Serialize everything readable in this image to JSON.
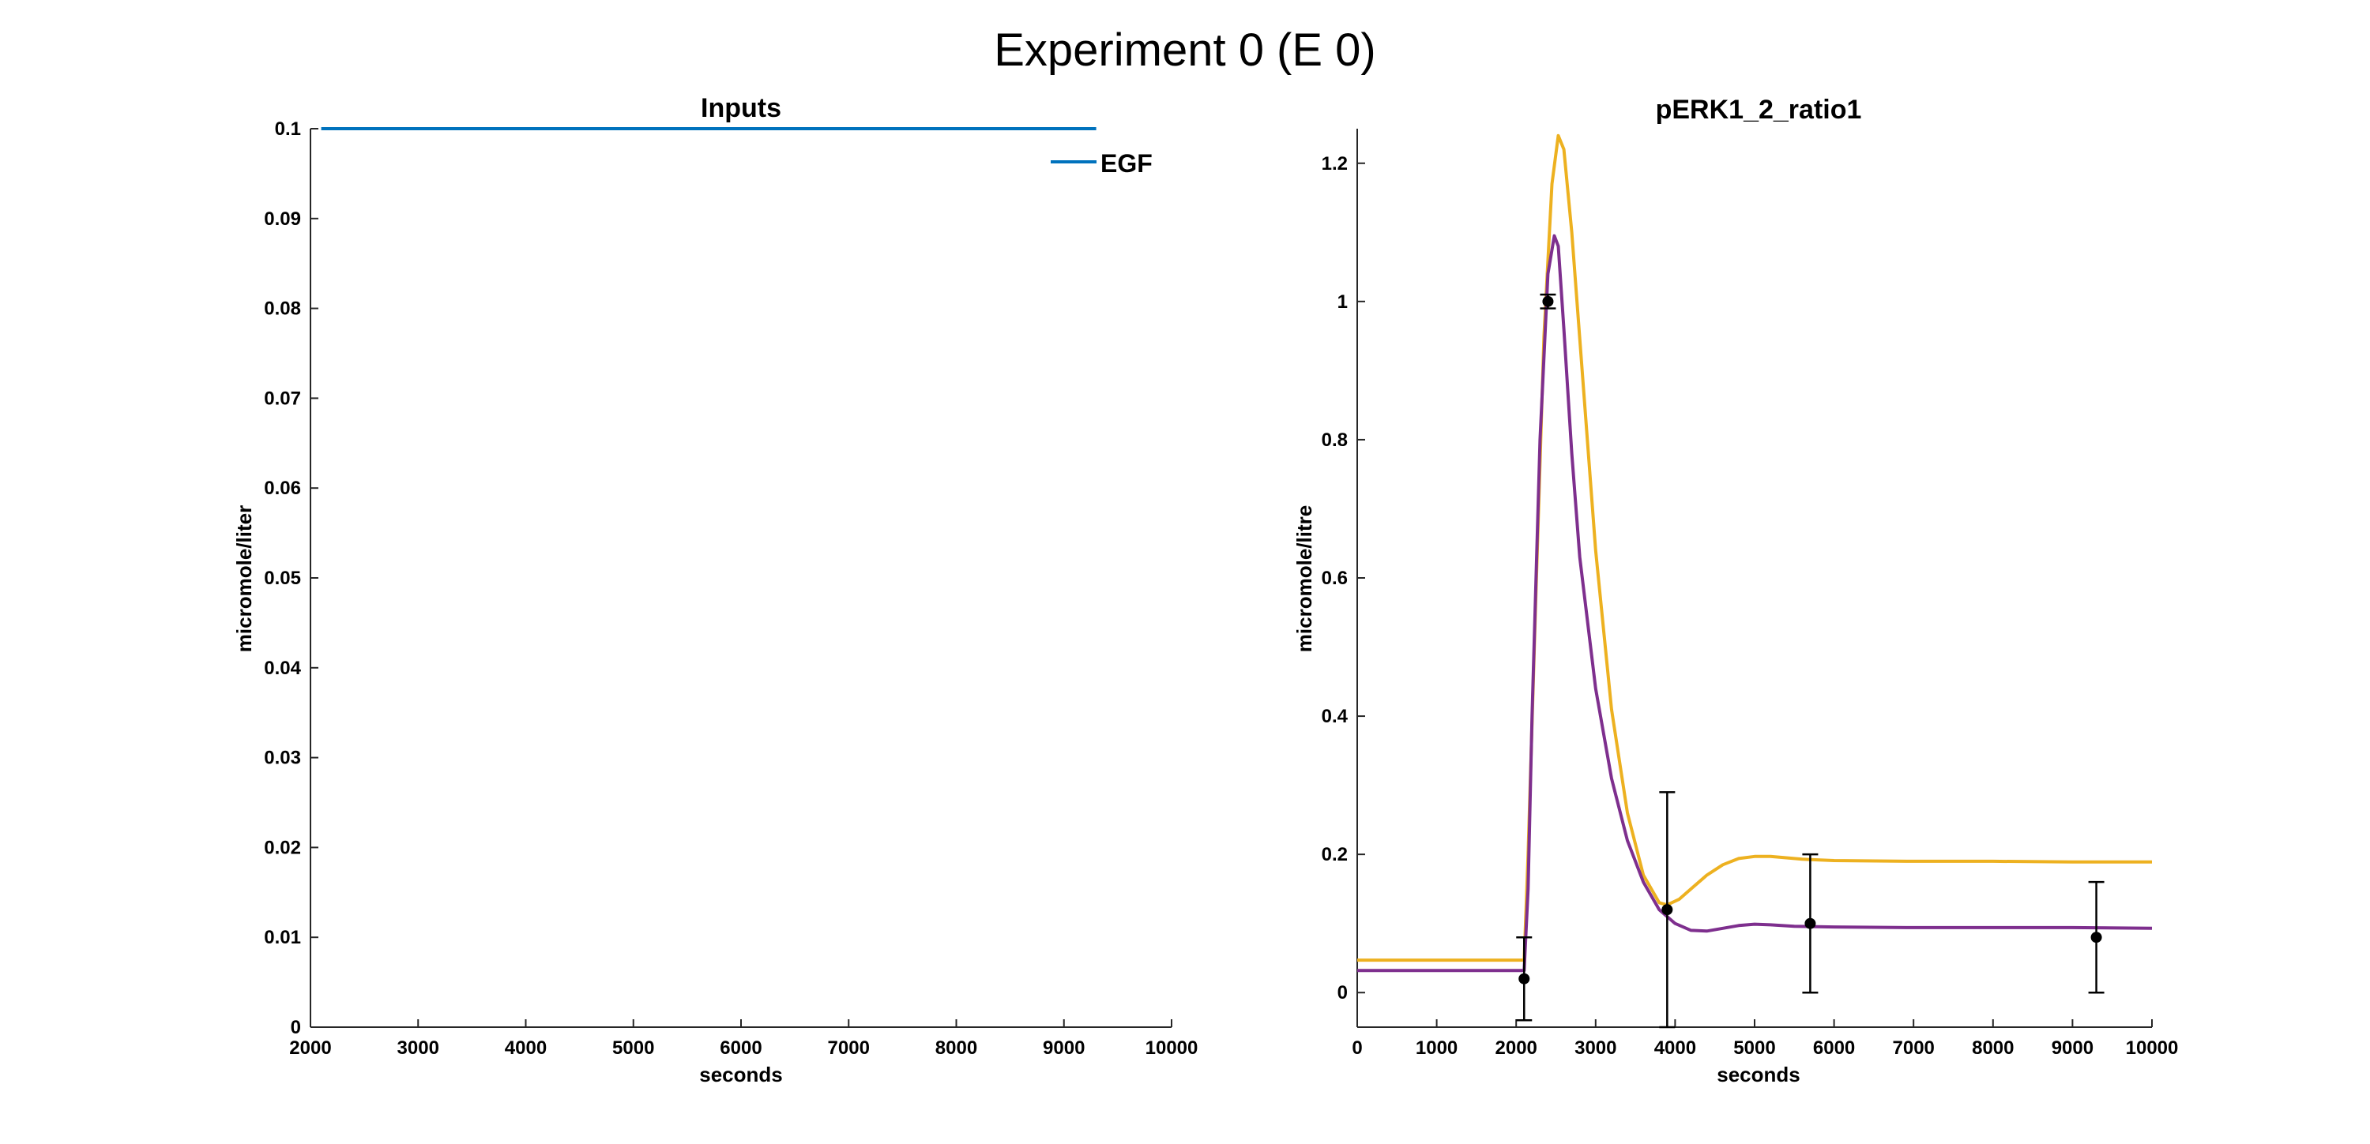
{
  "figure_title": "Experiment 0  (E 0)",
  "chart_data": [
    {
      "type": "line",
      "title": "Inputs",
      "xlabel": "seconds",
      "ylabel": "micromole/liter",
      "xlim": [
        2000,
        10000
      ],
      "ylim": [
        0,
        0.1
      ],
      "xticks": [
        "2000",
        "3000",
        "4000",
        "5000",
        "6000",
        "7000",
        "8000",
        "9000",
        "10000"
      ],
      "yticks": [
        "0",
        "0.01",
        "0.02",
        "0.03",
        "0.04",
        "0.05",
        "0.06",
        "0.07",
        "0.08",
        "0.09",
        "0.1"
      ],
      "series": [
        {
          "name": "EGF",
          "color": "#0072BD",
          "x": [
            2100,
            9300
          ],
          "y": [
            0.1,
            0.1
          ]
        }
      ],
      "legend": {
        "position": "top-right"
      },
      "grid": false
    },
    {
      "type": "line",
      "title": "pERK1_2_ratio1",
      "xlabel": "seconds",
      "ylabel": "micromole/litre",
      "xlim": [
        0,
        10000
      ],
      "ylim": [
        -0.05,
        1.25
      ],
      "xticks": [
        "0",
        "1000",
        "2000",
        "3000",
        "4000",
        "5000",
        "6000",
        "7000",
        "8000",
        "9000",
        "10000"
      ],
      "yticks": [
        "0",
        "0.2",
        "0.4",
        "0.6",
        "0.8",
        "1",
        "1.2"
      ],
      "series": [
        {
          "color": "#EDB120",
          "x": [
            0,
            2100,
            2150,
            2250,
            2350,
            2450,
            2530,
            2600,
            2700,
            2850,
            3000,
            3200,
            3400,
            3600,
            3800,
            3900,
            4050,
            4200,
            4400,
            4600,
            4800,
            5000,
            5200,
            5400,
            5600,
            6000,
            7000,
            8000,
            9000,
            10000
          ],
          "y": [
            0.047,
            0.047,
            0.2,
            0.58,
            0.95,
            1.17,
            1.24,
            1.22,
            1.1,
            0.87,
            0.64,
            0.41,
            0.26,
            0.17,
            0.13,
            0.127,
            0.135,
            0.15,
            0.17,
            0.185,
            0.194,
            0.197,
            0.197,
            0.195,
            0.193,
            0.191,
            0.19,
            0.19,
            0.189,
            0.189
          ]
        },
        {
          "color": "#7E2F8E",
          "x": [
            0,
            2100,
            2150,
            2200,
            2300,
            2400,
            2480,
            2530,
            2600,
            2700,
            2800,
            3000,
            3200,
            3400,
            3600,
            3800,
            4000,
            4200,
            4400,
            4600,
            4800,
            5000,
            5200,
            5500,
            6000,
            7000,
            8000,
            9000,
            10000
          ],
          "y": [
            0.032,
            0.032,
            0.15,
            0.4,
            0.8,
            1.04,
            1.095,
            1.08,
            0.96,
            0.78,
            0.63,
            0.44,
            0.31,
            0.22,
            0.16,
            0.12,
            0.1,
            0.09,
            0.089,
            0.093,
            0.097,
            0.099,
            0.098,
            0.096,
            0.095,
            0.094,
            0.094,
            0.094,
            0.093
          ]
        }
      ],
      "errorbars": {
        "color": "#000000",
        "points": [
          {
            "x": 2100,
            "y": 0.02,
            "err": 0.06
          },
          {
            "x": 2400,
            "y": 1.0,
            "err": 0.01
          },
          {
            "x": 3900,
            "y": 0.12,
            "err": 0.17
          },
          {
            "x": 5700,
            "y": 0.1,
            "err": 0.1
          },
          {
            "x": 9300,
            "y": 0.08,
            "err": 0.08
          }
        ]
      },
      "grid": false
    }
  ]
}
